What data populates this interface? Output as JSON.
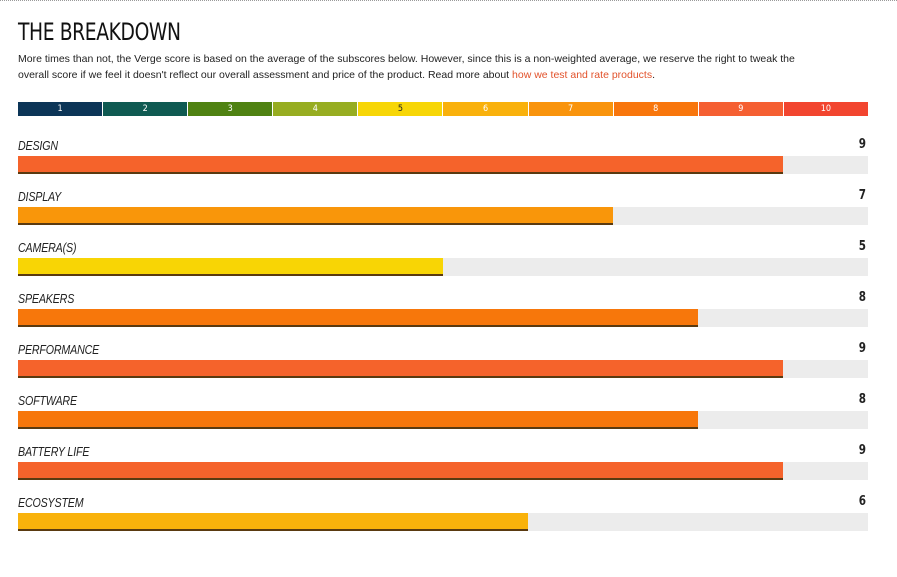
{
  "header": {
    "title": "THE BREAKDOWN"
  },
  "intro": {
    "text_before_link": "More times than not, the Verge score is based on the average of the subscores below. However, since this is a non-weighted average, we reserve the right to tweak the overall score if we feel it doesn't reflect our overall assessment and price of the product. Read more about ",
    "link_text": "how we test and rate products",
    "text_after_link": "."
  },
  "scale": [
    {
      "label": "1",
      "color": "#0c3557"
    },
    {
      "label": "2",
      "color": "#0f5a52"
    },
    {
      "label": "3",
      "color": "#4f8212"
    },
    {
      "label": "4",
      "color": "#97ad21"
    },
    {
      "label": "5",
      "color": "#f7d607"
    },
    {
      "label": "6",
      "color": "#f9b10c"
    },
    {
      "label": "7",
      "color": "#f9940d"
    },
    {
      "label": "8",
      "color": "#f8760c"
    },
    {
      "label": "9",
      "color": "#f55f32"
    },
    {
      "label": "10",
      "color": "#f2452f"
    }
  ],
  "scores": [
    {
      "label": "DESIGN",
      "score": "9",
      "value": 9,
      "color": "#f5632b"
    },
    {
      "label": "DISPLAY",
      "score": "7",
      "value": 7,
      "color": "#f9960a"
    },
    {
      "label": "CAMERA(S)",
      "score": "5",
      "value": 5,
      "color": "#f8d505"
    },
    {
      "label": "SPEAKERS",
      "score": "8",
      "value": 8,
      "color": "#f7770b"
    },
    {
      "label": "PERFORMANCE",
      "score": "9",
      "value": 9,
      "color": "#f5632b"
    },
    {
      "label": "SOFTWARE",
      "score": "8",
      "value": 8,
      "color": "#f7770b"
    },
    {
      "label": "BATTERY LIFE",
      "score": "9",
      "value": 9,
      "color": "#f5632b"
    },
    {
      "label": "ECOSYSTEM",
      "score": "6",
      "value": 6,
      "color": "#f9b20b"
    }
  ],
  "max_score": 10
}
